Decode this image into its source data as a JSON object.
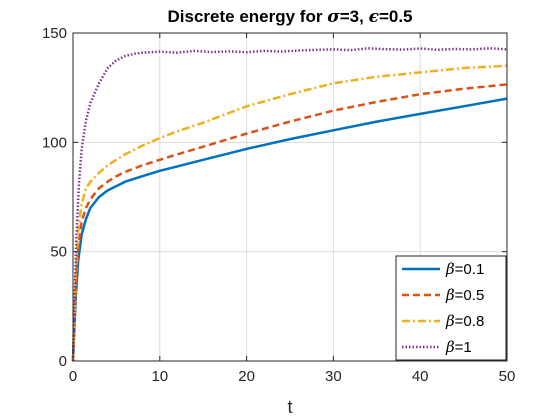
{
  "chart_data": {
    "type": "line",
    "title": {
      "prefix": "Discrete energy for ",
      "sigma_symbol": "σ",
      "sigma_value": "=3, ",
      "epsilon_symbol": "ϵ",
      "epsilon_value": "=0.5"
    },
    "xlabel": "t",
    "ylabel": "",
    "xlim": [
      0,
      50
    ],
    "ylim": [
      0,
      150
    ],
    "xticks": [
      "0",
      "10",
      "20",
      "30",
      "40",
      "50"
    ],
    "yticks": [
      "0",
      "50",
      "100",
      "150"
    ],
    "grid": true,
    "legend_position": "bottom-right",
    "series": [
      {
        "name": "β=0.1",
        "symbol": "β",
        "value_label": "=0.1",
        "color": "#0072BD",
        "style": "solid",
        "x": [
          0,
          0.3,
          0.6,
          1,
          1.5,
          2,
          3,
          4,
          5,
          6,
          8,
          10,
          12,
          15,
          20,
          25,
          30,
          35,
          40,
          45,
          50
        ],
        "y": [
          0,
          28,
          46,
          58,
          65,
          70,
          75,
          78,
          80,
          82,
          84.5,
          87,
          89,
          92,
          97,
          101.5,
          105.5,
          109.5,
          113,
          116.5,
          120
        ]
      },
      {
        "name": "β=0.5",
        "symbol": "β",
        "value_label": "=0.5",
        "color": "#D95319",
        "style": "dashed",
        "x": [
          0,
          0.3,
          0.6,
          1,
          1.5,
          2,
          3,
          4,
          5,
          6,
          8,
          10,
          12,
          15,
          20,
          25,
          30,
          35,
          40,
          45,
          50
        ],
        "y": [
          0,
          32,
          52,
          64,
          70,
          74,
          79,
          82,
          84.5,
          86.5,
          89.5,
          92,
          94.5,
          98,
          104,
          109.5,
          114.5,
          118.5,
          122,
          124.5,
          126.5
        ]
      },
      {
        "name": "β=0.8",
        "symbol": "β",
        "value_label": "=0.8",
        "color": "#EDB120",
        "style": "dashdot",
        "x": [
          0,
          0.3,
          0.6,
          1,
          1.5,
          2,
          3,
          4,
          5,
          6,
          8,
          10,
          12,
          15,
          20,
          25,
          30,
          35,
          40,
          45,
          50
        ],
        "y": [
          0,
          38,
          60,
          72,
          79,
          82,
          86,
          89.5,
          92,
          94.5,
          98.5,
          102,
          105,
          109,
          116.5,
          122,
          127,
          130,
          132,
          134,
          135
        ]
      },
      {
        "name": "β=1",
        "symbol": "β",
        "value_label": "=1",
        "color": "#7E2F8E",
        "style": "dotted",
        "x": [
          0,
          0.2,
          0.4,
          0.7,
          1,
          1.5,
          2,
          3,
          4,
          5,
          6,
          7,
          8,
          10,
          12,
          14,
          16,
          18,
          20,
          22,
          24,
          26,
          28,
          30,
          32,
          34,
          36,
          38,
          40,
          42,
          44,
          46,
          48,
          50
        ],
        "y": [
          0,
          30,
          58,
          82,
          97,
          110,
          118,
          127,
          134,
          137.5,
          139.5,
          140.5,
          141,
          141.5,
          141,
          141.8,
          141.3,
          141.6,
          141.2,
          141.8,
          141.5,
          142,
          142.3,
          142.5,
          142.2,
          143,
          142.6,
          142.4,
          142.9,
          142.3,
          142.7,
          142.5,
          143,
          142.5
        ]
      }
    ]
  }
}
